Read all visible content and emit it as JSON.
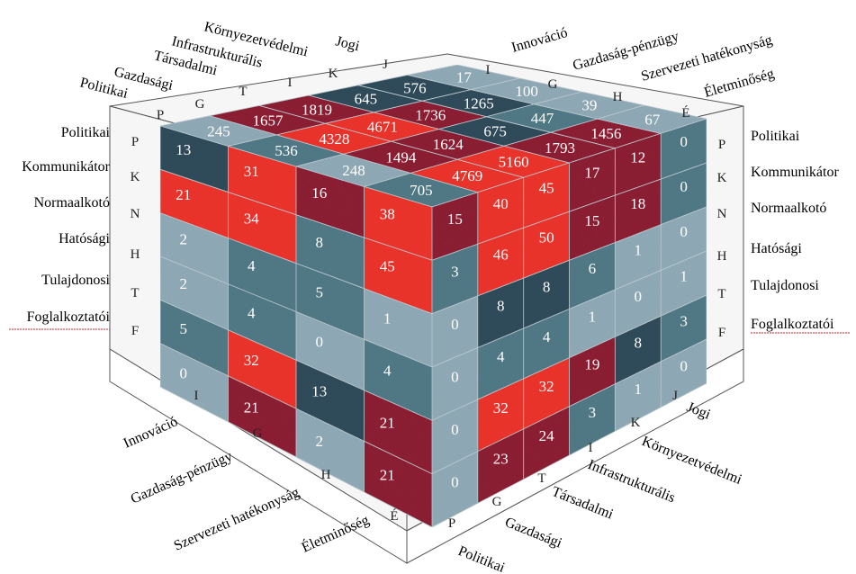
{
  "colors": {
    "red": "#e8322a",
    "maroon": "#8a1f33",
    "dark": "#2f4a58",
    "teal": "#4f7784",
    "light": "#8da8b4",
    "frame": "#f6f6f6",
    "line": "#555555"
  },
  "left_labels": [
    "Politikai",
    "Kommunikátor",
    "Normaalkotó",
    "Hatósági",
    "Tulajdonosi",
    "Foglalkoztatói"
  ],
  "right_labels": [
    "Politikai",
    "Kommunikátor",
    "Normaalkotó",
    "Hatósági",
    "Tulajdonosi",
    "Foglalkoztatói"
  ],
  "row_codes_left": [
    "P",
    "K",
    "N",
    "H",
    "T",
    "F"
  ],
  "row_codes_right": [
    "P",
    "K",
    "N",
    "H",
    "T",
    "F"
  ],
  "top_left_labels": [
    "Politikai",
    "Gazdasági",
    "Társadalmi",
    "Infrastrukturális",
    "Környezetvédelmi",
    "Jogi"
  ],
  "top_left_codes": [
    "P",
    "G",
    "T",
    "I",
    "K",
    "J"
  ],
  "top_right_labels": [
    "Innováció",
    "Gazdaság-pénzügy",
    "Szervezeti hatékonyság",
    "Életminőség"
  ],
  "top_right_codes": [
    "I",
    "G",
    "H",
    "É"
  ],
  "bottom_left_labels": [
    "Innováció",
    "Gazdaság-pénzügy",
    "Szervezeti hatékonyság",
    "Életminőség"
  ],
  "bottom_left_codes": [
    "I",
    "G",
    "H",
    "É"
  ],
  "bottom_right_labels": [
    "Politikai",
    "Gazdasági",
    "Társadalmi",
    "Infrastrukturális",
    "Környezetvédelmi",
    "Jogi"
  ],
  "bottom_right_codes": [
    "P",
    "G",
    "T",
    "I",
    "K",
    "J"
  ],
  "front_face": [
    [
      {
        "v": "13",
        "c": "dark"
      },
      {
        "v": "31",
        "c": "red"
      },
      {
        "v": "16",
        "c": "maroon"
      },
      {
        "v": "38",
        "c": "red"
      }
    ],
    [
      {
        "v": "21",
        "c": "red"
      },
      {
        "v": "34",
        "c": "red"
      },
      {
        "v": "8",
        "c": "teal"
      },
      {
        "v": "45",
        "c": "red"
      }
    ],
    [
      {
        "v": "2",
        "c": "light"
      },
      {
        "v": "4",
        "c": "teal"
      },
      {
        "v": "5",
        "c": "teal"
      },
      {
        "v": "1",
        "c": "light"
      }
    ],
    [
      {
        "v": "2",
        "c": "light"
      },
      {
        "v": "4",
        "c": "teal"
      },
      {
        "v": "0",
        "c": "light"
      },
      {
        "v": "4",
        "c": "teal"
      }
    ],
    [
      {
        "v": "5",
        "c": "teal"
      },
      {
        "v": "32",
        "c": "red"
      },
      {
        "v": "13",
        "c": "dark"
      },
      {
        "v": "21",
        "c": "maroon"
      }
    ],
    [
      {
        "v": "0",
        "c": "light"
      },
      {
        "v": "21",
        "c": "maroon"
      },
      {
        "v": "2",
        "c": "light"
      },
      {
        "v": "21",
        "c": "maroon"
      }
    ]
  ],
  "side_face": [
    [
      {
        "v": "15",
        "c": "maroon"
      },
      {
        "v": "40",
        "c": "red"
      },
      {
        "v": "45",
        "c": "red"
      },
      {
        "v": "17",
        "c": "maroon"
      },
      {
        "v": "12",
        "c": "maroon"
      },
      {
        "v": "0",
        "c": "teal"
      }
    ],
    [
      {
        "v": "3",
        "c": "teal"
      },
      {
        "v": "46",
        "c": "red"
      },
      {
        "v": "50",
        "c": "red"
      },
      {
        "v": "15",
        "c": "maroon"
      },
      {
        "v": "18",
        "c": "maroon"
      },
      {
        "v": "0",
        "c": "teal"
      }
    ],
    [
      {
        "v": "0",
        "c": "light"
      },
      {
        "v": "8",
        "c": "dark"
      },
      {
        "v": "8",
        "c": "dark"
      },
      {
        "v": "6",
        "c": "teal"
      },
      {
        "v": "1",
        "c": "light"
      },
      {
        "v": "0",
        "c": "light"
      }
    ],
    [
      {
        "v": "0",
        "c": "light"
      },
      {
        "v": "4",
        "c": "teal"
      },
      {
        "v": "4",
        "c": "teal"
      },
      {
        "v": "1",
        "c": "light"
      },
      {
        "v": "0",
        "c": "light"
      },
      {
        "v": "1",
        "c": "light"
      }
    ],
    [
      {
        "v": "0",
        "c": "light"
      },
      {
        "v": "32",
        "c": "red"
      },
      {
        "v": "32",
        "c": "red"
      },
      {
        "v": "19",
        "c": "maroon"
      },
      {
        "v": "8",
        "c": "dark"
      },
      {
        "v": "3",
        "c": "teal"
      }
    ],
    [
      {
        "v": "0",
        "c": "light"
      },
      {
        "v": "23",
        "c": "maroon"
      },
      {
        "v": "24",
        "c": "maroon"
      },
      {
        "v": "3",
        "c": "teal"
      },
      {
        "v": "1",
        "c": "light"
      },
      {
        "v": "0",
        "c": "light"
      }
    ]
  ],
  "top_face": [
    [
      {
        "v": "245",
        "c": "light"
      },
      {
        "v": "1657",
        "c": "maroon"
      },
      {
        "v": "1819",
        "c": "maroon"
      },
      {
        "v": "645",
        "c": "dark"
      },
      {
        "v": "576",
        "c": "dark"
      },
      {
        "v": "17",
        "c": "light"
      }
    ],
    [
      {
        "v": "536",
        "c": "teal"
      },
      {
        "v": "4328",
        "c": "red"
      },
      {
        "v": "4671",
        "c": "red"
      },
      {
        "v": "1736",
        "c": "maroon"
      },
      {
        "v": "1265",
        "c": "dark"
      },
      {
        "v": "100",
        "c": "light"
      }
    ],
    [
      {
        "v": "248",
        "c": "light"
      },
      {
        "v": "1494",
        "c": "maroon"
      },
      {
        "v": "1624",
        "c": "maroon"
      },
      {
        "v": "675",
        "c": "dark"
      },
      {
        "v": "447",
        "c": "teal"
      },
      {
        "v": "39",
        "c": "light"
      }
    ],
    [
      {
        "v": "705",
        "c": "teal"
      },
      {
        "v": "4769",
        "c": "red"
      },
      {
        "v": "5160",
        "c": "red"
      },
      {
        "v": "1793",
        "c": "maroon"
      },
      {
        "v": "1456",
        "c": "maroon"
      },
      {
        "v": "67",
        "c": "light"
      }
    ]
  ]
}
